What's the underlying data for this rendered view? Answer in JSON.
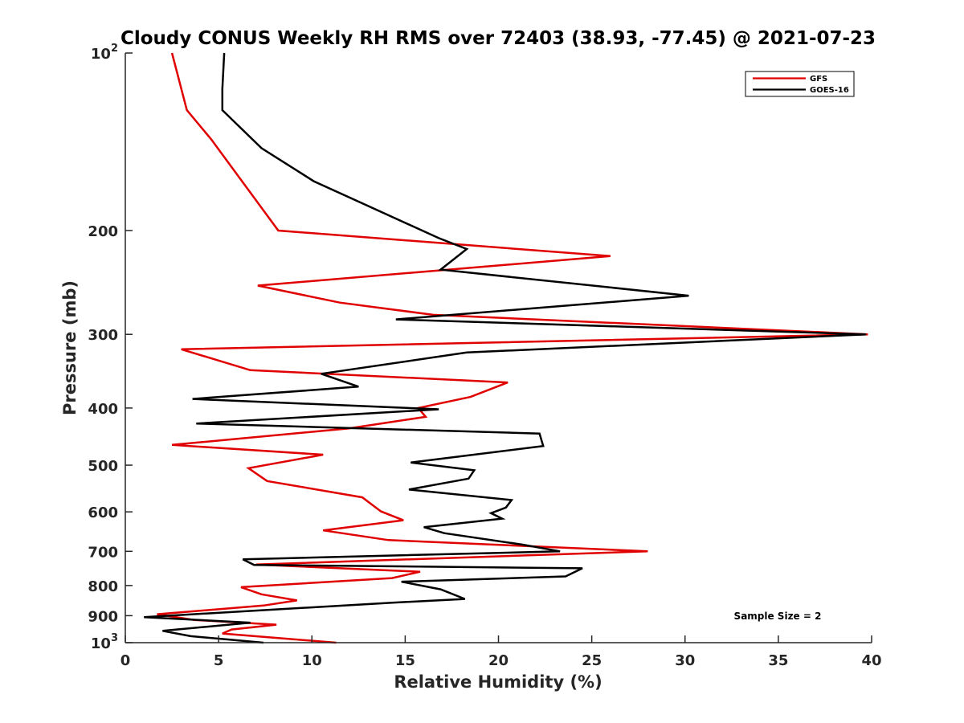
{
  "chart_data": {
    "type": "line",
    "title": "Cloudy CONUS Weekly RH RMS over 72403 (38.93, -77.45) @ 2021-07-23",
    "xlabel": "Relative Humidity (%)",
    "ylabel": "Pressure (mb)",
    "xlim": [
      0,
      40
    ],
    "ylim": [
      100,
      1000
    ],
    "y_scale": "log",
    "y_reversed": true,
    "grid": false,
    "legend_position": "top-right",
    "x_ticks": [
      "0",
      "5",
      "10",
      "15",
      "20",
      "25",
      "30",
      "35",
      "40"
    ],
    "y_ticks": [
      {
        "value": 100,
        "base": "10",
        "exp": "2"
      },
      {
        "value": 200,
        "label": "200"
      },
      {
        "value": 300,
        "label": "300"
      },
      {
        "value": 400,
        "label": "400"
      },
      {
        "value": 500,
        "label": "500"
      },
      {
        "value": 600,
        "label": "600"
      },
      {
        "value": 700,
        "label": "700"
      },
      {
        "value": 800,
        "label": "800"
      },
      {
        "value": 900,
        "label": "900"
      },
      {
        "value": 1000,
        "base": "10",
        "exp": "3"
      }
    ],
    "annotation": "Sample Size = 2",
    "series": [
      {
        "name": "GFS",
        "color": "#e00000",
        "points": [
          [
            2.5,
            100
          ],
          [
            3.3,
            125
          ],
          [
            4.6,
            140
          ],
          [
            8.2,
            200
          ],
          [
            26.0,
            221
          ],
          [
            7.1,
            248
          ],
          [
            11.5,
            265
          ],
          [
            16.5,
            278
          ],
          [
            39.8,
            300
          ],
          [
            3.0,
            318
          ],
          [
            6.7,
            345
          ],
          [
            20.5,
            362
          ],
          [
            18.5,
            383
          ],
          [
            15.7,
            400
          ],
          [
            16.1,
            414
          ],
          [
            12.0,
            433
          ],
          [
            2.5,
            462
          ],
          [
            10.6,
            480
          ],
          [
            6.6,
            506
          ],
          [
            7.6,
            532
          ],
          [
            12.7,
            567
          ],
          [
            13.7,
            599
          ],
          [
            14.9,
            620
          ],
          [
            10.6,
            645
          ],
          [
            14.1,
            670
          ],
          [
            28.0,
            700
          ],
          [
            7.0,
            737
          ],
          [
            15.8,
            758
          ],
          [
            14.3,
            777
          ],
          [
            6.2,
            805
          ],
          [
            7.3,
            828
          ],
          [
            9.2,
            848
          ],
          [
            7.4,
            865
          ],
          [
            1.7,
            895
          ],
          [
            3.7,
            915
          ],
          [
            8.1,
            932
          ],
          [
            5.7,
            950
          ],
          [
            5.2,
            965
          ],
          [
            11.3,
            1000
          ]
        ]
      },
      {
        "name": "GOES-16",
        "color": "#000000",
        "points": [
          [
            5.3,
            100
          ],
          [
            5.2,
            115
          ],
          [
            5.2,
            125
          ],
          [
            7.3,
            145
          ],
          [
            10.1,
            165
          ],
          [
            16.8,
            206
          ],
          [
            18.3,
            215
          ],
          [
            16.9,
            233
          ],
          [
            30.2,
            258
          ],
          [
            14.5,
            283
          ],
          [
            39.7,
            300
          ],
          [
            18.3,
            322
          ],
          [
            10.5,
            350
          ],
          [
            12.5,
            368
          ],
          [
            3.6,
            386
          ],
          [
            16.8,
            402
          ],
          [
            3.8,
            425
          ],
          [
            22.2,
            442
          ],
          [
            22.4,
            464
          ],
          [
            15.3,
            495
          ],
          [
            18.7,
            510
          ],
          [
            18.4,
            527
          ],
          [
            15.2,
            550
          ],
          [
            20.7,
            573
          ],
          [
            20.4,
            590
          ],
          [
            19.6,
            603
          ],
          [
            20.2,
            616
          ],
          [
            16.0,
            637
          ],
          [
            17.1,
            652
          ],
          [
            21.3,
            682
          ],
          [
            23.3,
            700
          ],
          [
            6.3,
            722
          ],
          [
            6.9,
            738
          ],
          [
            24.5,
            748
          ],
          [
            23.6,
            772
          ],
          [
            14.8,
            788
          ],
          [
            16.9,
            812
          ],
          [
            18.2,
            843
          ],
          [
            14.4,
            855
          ],
          [
            1.0,
            905
          ],
          [
            6.7,
            925
          ],
          [
            2.0,
            955
          ],
          [
            3.5,
            975
          ],
          [
            7.4,
            1000
          ]
        ]
      }
    ]
  }
}
